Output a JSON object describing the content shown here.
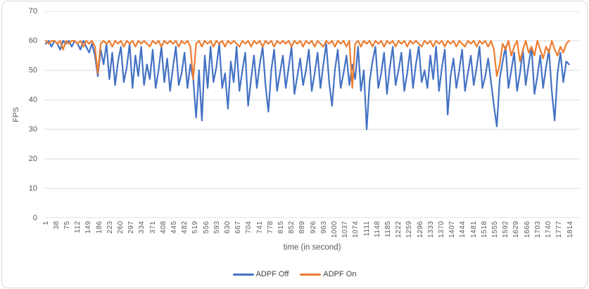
{
  "chart_data": {
    "type": "line",
    "title": "",
    "xlabel": "time (in second)",
    "ylabel": "FPS",
    "x_start": 1,
    "x_end": 1814,
    "x_step_between_points": 10,
    "ylim": [
      0,
      70
    ],
    "y_ticks": [
      0,
      10,
      20,
      30,
      40,
      50,
      60,
      70
    ],
    "grid": "horizontal",
    "legend_position": "bottom-center",
    "colors": {
      "grid": "#d9d9d9",
      "baseline": "#c8c8c8",
      "axis_text": "#595959",
      "frame_border": "#d9d9d9"
    },
    "x_tick_labels": [
      "1",
      "38",
      "75",
      "112",
      "149",
      "186",
      "223",
      "260",
      "297",
      "334",
      "371",
      "408",
      "445",
      "482",
      "519",
      "556",
      "593",
      "630",
      "667",
      "704",
      "741",
      "778",
      "815",
      "852",
      "889",
      "926",
      "963",
      "1000",
      "1037",
      "1074",
      "1111",
      "1148",
      "1185",
      "1222",
      "1259",
      "1296",
      "1333",
      "1370",
      "1407",
      "1444",
      "1481",
      "1518",
      "1555",
      "1592",
      "1629",
      "1666",
      "1703",
      "1740",
      "1777",
      "1814"
    ],
    "series": [
      {
        "name": "ADPF Off",
        "color": "#4472C4",
        "values": [
          59,
          60,
          58,
          60,
          59,
          57,
          60,
          59,
          60,
          58,
          60,
          59,
          57,
          60,
          58,
          56,
          59,
          55,
          48,
          57,
          52,
          59,
          47,
          56,
          45,
          53,
          58,
          46,
          51,
          59,
          44,
          55,
          48,
          58,
          45,
          52,
          47,
          57,
          44,
          50,
          58,
          46,
          54,
          43,
          51,
          58,
          45,
          49,
          56,
          44,
          52,
          47,
          34,
          50,
          33,
          55,
          44,
          58,
          46,
          51,
          59,
          44,
          49,
          37,
          53,
          46,
          58,
          43,
          50,
          56,
          38,
          47,
          55,
          44,
          52,
          58,
          45,
          36,
          50,
          57,
          43,
          49,
          55,
          44,
          51,
          58,
          42,
          48,
          54,
          45,
          50,
          57,
          43,
          49,
          56,
          44,
          52,
          59,
          46,
          38,
          50,
          57,
          44,
          49,
          55,
          45,
          52,
          47,
          58,
          43,
          50,
          30,
          46,
          53,
          58,
          44,
          49,
          56,
          42,
          51,
          58,
          45,
          50,
          56,
          43,
          49,
          57,
          44,
          52,
          58,
          46,
          50,
          44,
          55,
          47,
          58,
          43,
          51,
          57,
          35,
          48,
          54,
          44,
          50,
          57,
          43,
          49,
          55,
          45,
          51,
          58,
          44,
          48,
          54,
          46,
          38,
          31,
          47,
          53,
          58,
          44,
          50,
          56,
          43,
          49,
          57,
          45,
          52,
          58,
          42,
          48,
          55,
          44,
          51,
          57,
          43,
          33,
          49,
          56,
          46,
          53,
          52
        ]
      },
      {
        "name": "ADPF On",
        "color": "#ED7D31",
        "values": [
          60,
          59,
          60,
          60,
          59,
          60,
          57,
          60,
          59,
          60,
          60,
          59,
          60,
          58,
          60,
          59,
          60,
          58,
          49,
          59,
          60,
          59,
          60,
          58,
          60,
          59,
          60,
          58,
          60,
          59,
          60,
          58,
          60,
          59,
          60,
          59,
          58,
          60,
          59,
          60,
          58,
          60,
          59,
          60,
          59,
          60,
          58,
          60,
          59,
          60,
          58,
          47,
          59,
          60,
          58,
          60,
          59,
          60,
          58,
          60,
          59,
          60,
          58,
          60,
          59,
          60,
          59,
          58,
          60,
          59,
          60,
          58,
          60,
          59,
          60,
          58,
          60,
          59,
          60,
          58,
          60,
          59,
          60,
          59,
          60,
          58,
          60,
          59,
          60,
          58,
          60,
          59,
          60,
          58,
          60,
          59,
          58,
          60,
          59,
          60,
          58,
          60,
          59,
          60,
          58,
          60,
          44,
          59,
          60,
          58,
          60,
          59,
          60,
          58,
          60,
          59,
          60,
          58,
          60,
          59,
          60,
          58,
          60,
          59,
          60,
          58,
          60,
          59,
          60,
          59,
          58,
          60,
          59,
          60,
          58,
          60,
          59,
          60,
          58,
          60,
          59,
          60,
          58,
          60,
          59,
          58,
          60,
          59,
          60,
          58,
          60,
          59,
          60,
          58,
          60,
          57,
          48,
          52,
          59,
          57,
          60,
          55,
          58,
          60,
          53,
          57,
          60,
          56,
          58,
          55,
          60,
          57,
          54,
          58,
          56,
          60,
          57,
          55,
          58,
          56,
          59,
          60
        ]
      }
    ]
  }
}
